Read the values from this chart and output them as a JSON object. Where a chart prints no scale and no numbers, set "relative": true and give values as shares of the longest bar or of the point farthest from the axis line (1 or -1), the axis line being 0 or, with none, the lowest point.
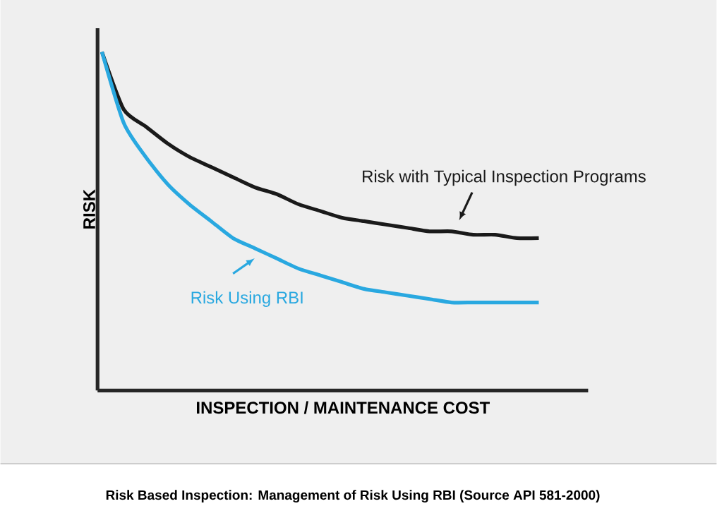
{
  "chart_data": {
    "type": "line",
    "relative": true,
    "xlabel": "INSPECTION / MAINTENANCE COST",
    "ylabel": "RISK",
    "annotations": [
      "Risk Based Inspection: Management of Risk Using RBI (Source API 581-2000)"
    ],
    "categories": [
      null,
      null,
      null,
      null,
      null,
      null,
      null,
      null,
      null,
      null,
      null,
      null,
      null,
      null,
      null,
      null,
      null,
      null,
      null,
      null,
      null
    ],
    "series": [
      {
        "name": "Risk with Typical Inspection Programs",
        "color": "#1a1a1a",
        "values": [
          1.0,
          0.83,
          0.78,
          0.73,
          0.69,
          0.66,
          0.63,
          0.6,
          0.58,
          0.55,
          0.53,
          0.51,
          0.5,
          0.49,
          0.48,
          0.47,
          0.47,
          0.46,
          0.46,
          0.45,
          0.45
        ]
      },
      {
        "name": "Risk Using RBI",
        "color": "#29a8e0",
        "values": [
          1.0,
          0.79,
          0.69,
          0.61,
          0.55,
          0.5,
          0.45,
          0.42,
          0.39,
          0.36,
          0.34,
          0.32,
          0.3,
          0.29,
          0.28,
          0.27,
          0.26,
          0.26,
          0.26,
          0.26,
          0.26
        ]
      }
    ],
    "marker": "none"
  }
}
